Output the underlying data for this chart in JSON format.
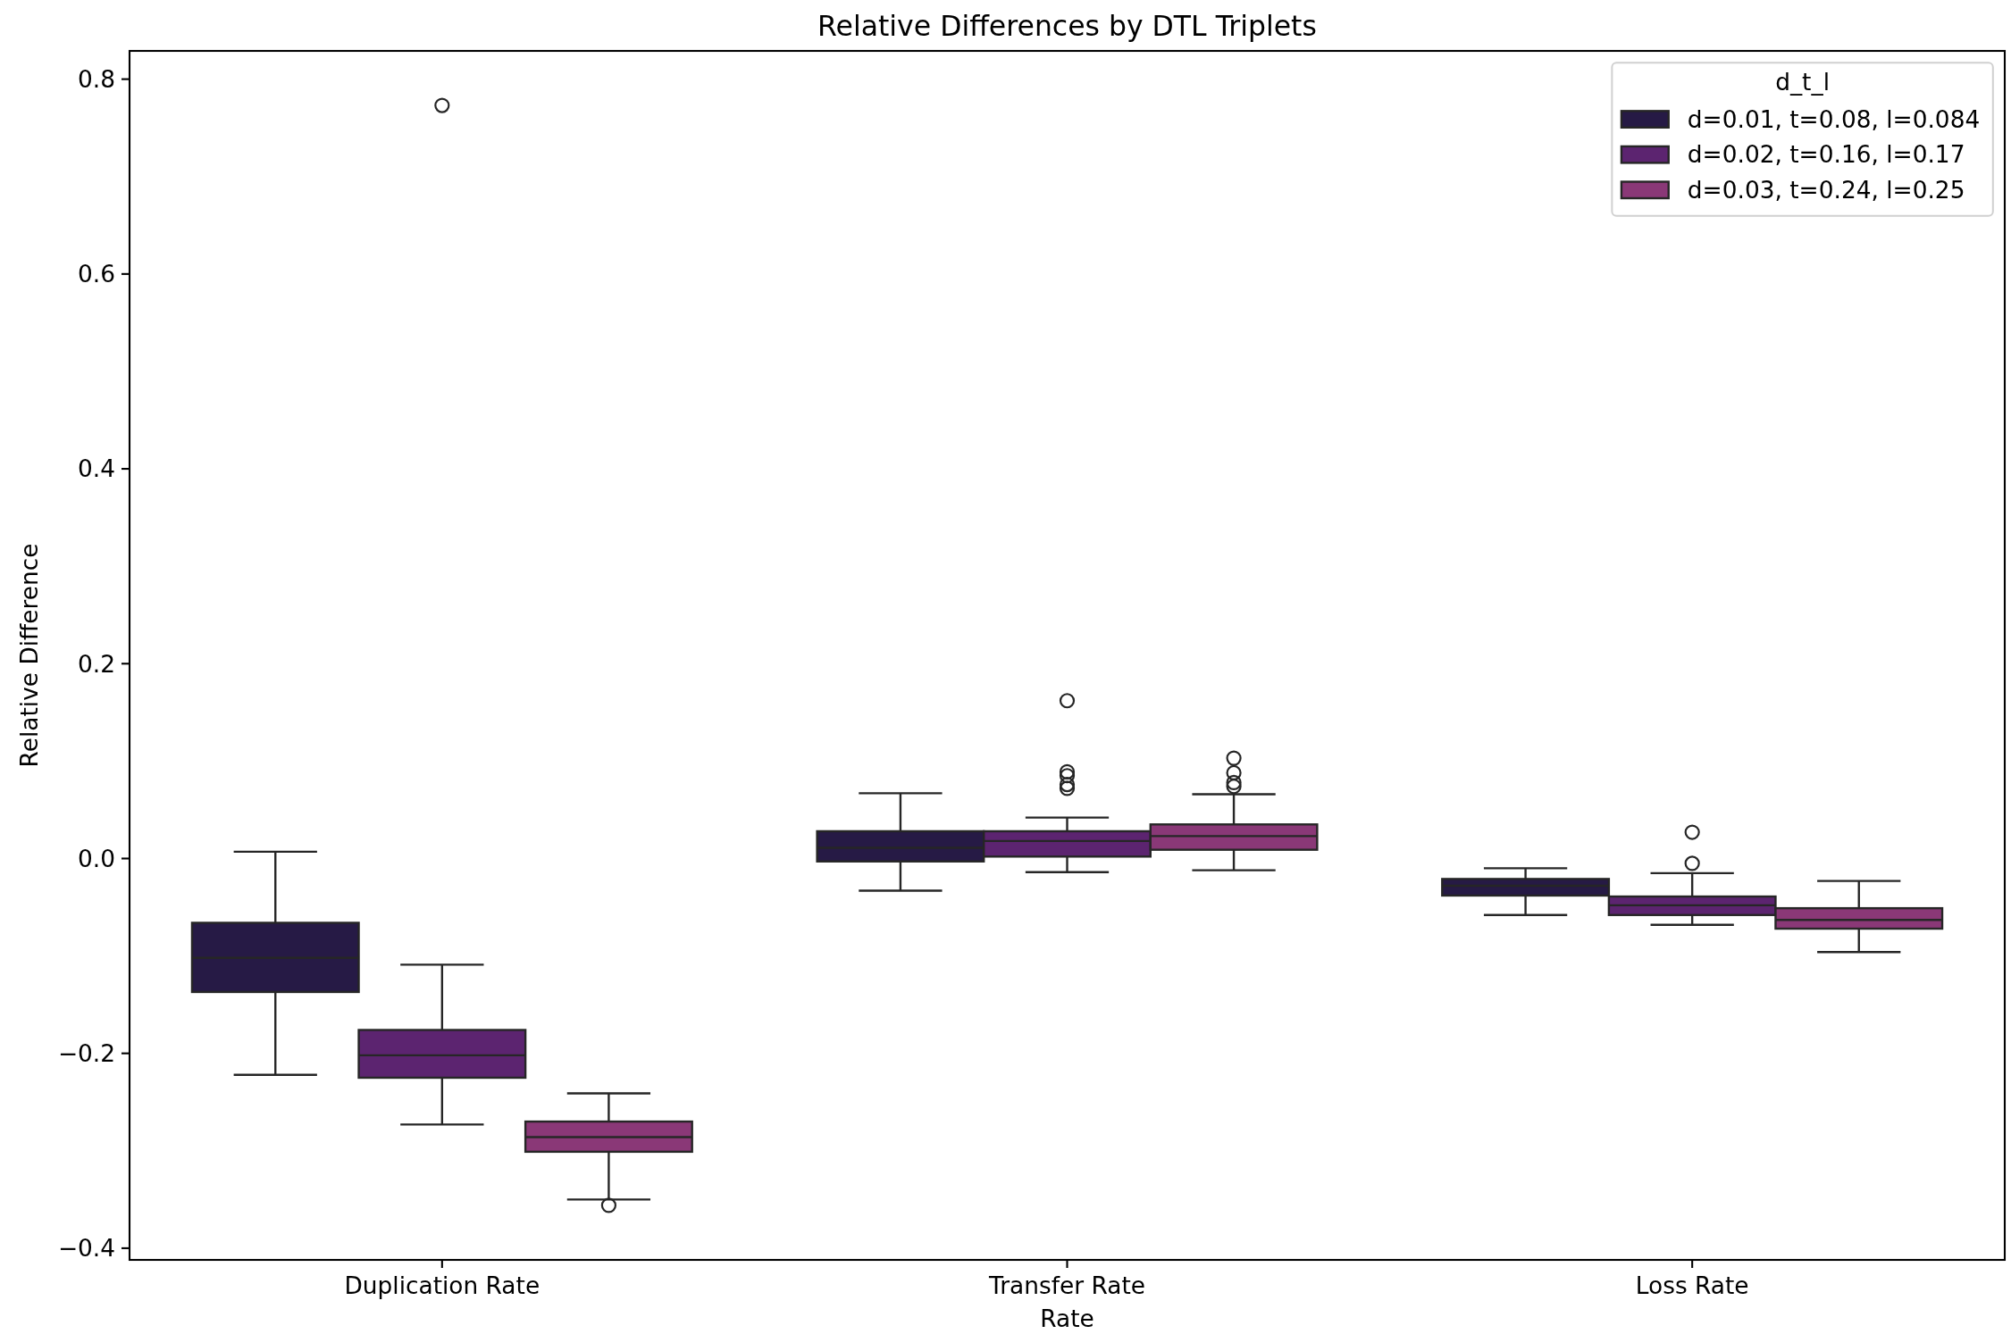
{
  "chart_data": {
    "type": "box",
    "title": "Relative Differences by DTL Triplets",
    "xlabel": "Rate",
    "ylabel": "Relative Difference",
    "categories": [
      "Duplication Rate",
      "Transfer Rate",
      "Loss Rate"
    ],
    "ylim": [
      -0.412,
      0.829
    ],
    "yticks": [
      {
        "value": -0.4,
        "label": "−0.4"
      },
      {
        "value": -0.2,
        "label": "−0.2"
      },
      {
        "value": 0,
        "label": "0.0"
      },
      {
        "value": 0.2,
        "label": "0.2"
      },
      {
        "value": 0.4,
        "label": "0.4"
      },
      {
        "value": 0.6,
        "label": "0.6"
      },
      {
        "value": 0.8,
        "label": "0.8"
      }
    ],
    "legend": "top right",
    "legend_title": "d_t_l",
    "series": [
      {
        "name": "d=0.01, t=0.08, l=0.084",
        "color": "#261a45",
        "boxes": [
          {
            "low": -0.222,
            "q1": -0.137,
            "median": -0.102,
            "q3": -0.066,
            "high": 0.007
          },
          {
            "low": -0.033,
            "q1": -0.003,
            "median": 0.011,
            "q3": 0.028,
            "high": 0.067
          },
          {
            "low": -0.058,
            "q1": -0.038,
            "median": -0.028,
            "q3": -0.021,
            "high": -0.01
          }
        ]
      },
      {
        "name": "d=0.02, t=0.16, l=0.17",
        "color": "#5c2470",
        "boxes": [
          {
            "low": -0.273,
            "q1": -0.225,
            "median": -0.202,
            "q3": -0.176,
            "high": -0.109,
            "outliers": [
              0.773
            ]
          },
          {
            "low": -0.014,
            "q1": 0.002,
            "median": 0.018,
            "q3": 0.028,
            "high": 0.042,
            "outliers": [
              0.162,
              0.089,
              0.085,
              0.076,
              0.072
            ]
          },
          {
            "low": -0.068,
            "q1": -0.058,
            "median": -0.048,
            "q3": -0.039,
            "high": -0.015,
            "outliers": [
              0.027,
              -0.005
            ]
          }
        ]
      },
      {
        "name": "d=0.03, t=0.24, l=0.25",
        "color": "#8a3877",
        "boxes": [
          {
            "low": -0.35,
            "q1": -0.301,
            "median": -0.286,
            "q3": -0.27,
            "high": -0.241,
            "outliers": [
              -0.356
            ]
          },
          {
            "low": -0.012,
            "q1": 0.009,
            "median": 0.023,
            "q3": 0.035,
            "high": 0.066,
            "outliers": [
              0.103,
              0.088,
              0.078,
              0.074
            ]
          },
          {
            "low": -0.096,
            "q1": -0.072,
            "median": -0.063,
            "q3": -0.051,
            "high": -0.023
          }
        ]
      }
    ]
  }
}
